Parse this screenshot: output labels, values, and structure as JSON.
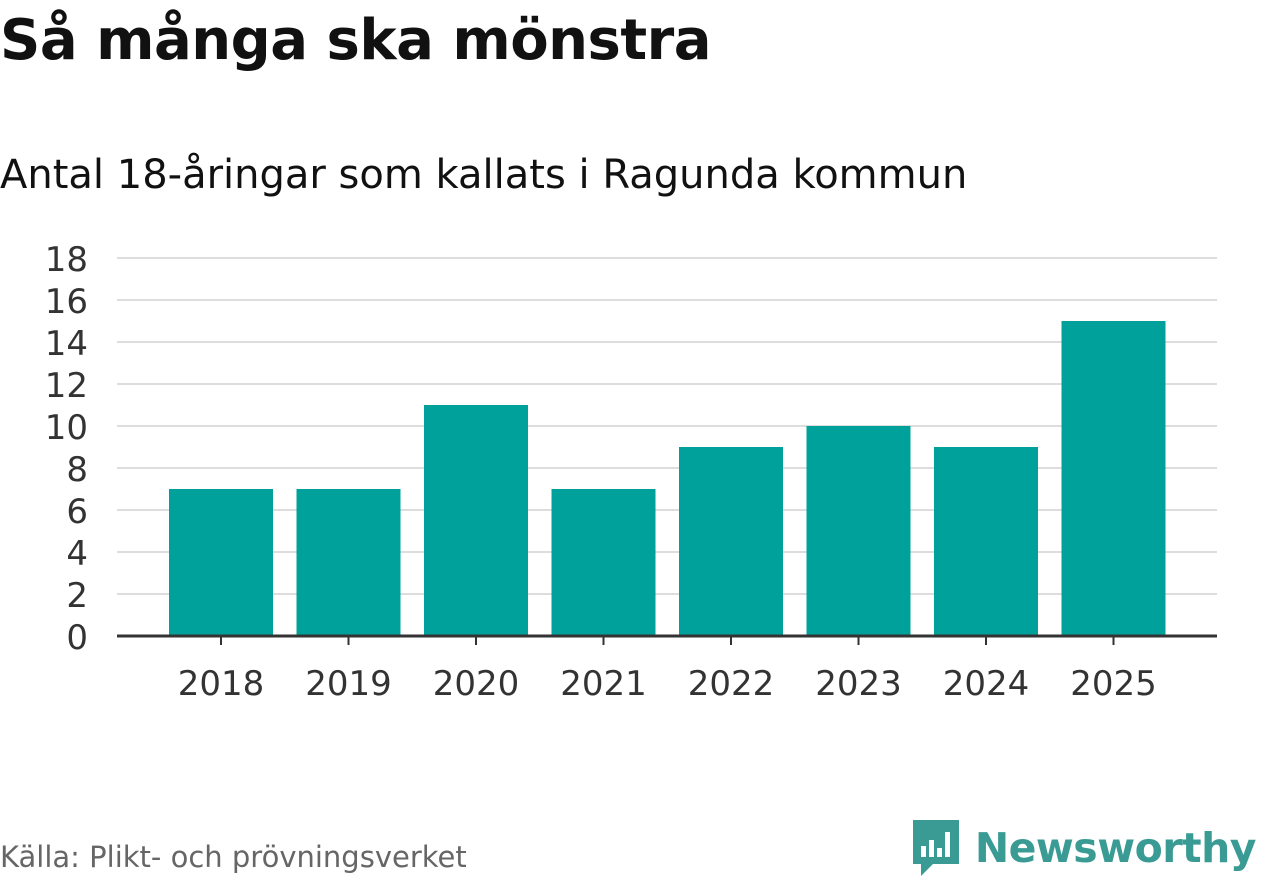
{
  "title": "Så många ska mönstra",
  "subtitle": "Antal 18-åringar som kallats i Ragunda kommun",
  "source": "Källa: Plikt- och prövningsverket",
  "brand": {
    "name": "Newsworthy",
    "icon": "newsworthy-logo-icon",
    "color": "#3a9b95"
  },
  "colors": {
    "bar": "#00a19a",
    "grid": "#dddddd",
    "axis": "#333333"
  },
  "chart_data": {
    "type": "bar",
    "title": "Så många ska mönstra",
    "subtitle": "Antal 18-åringar som kallats i Ragunda kommun",
    "categories": [
      "2018",
      "2019",
      "2020",
      "2021",
      "2022",
      "2023",
      "2024",
      "2025"
    ],
    "values": [
      7,
      7,
      11,
      7,
      9,
      10,
      9,
      15
    ],
    "xlabel": "",
    "ylabel": "",
    "ylim": [
      0,
      18
    ],
    "yticks": [
      0,
      2,
      4,
      6,
      8,
      10,
      12,
      14,
      16,
      18
    ],
    "grid": true,
    "legend": "none"
  }
}
